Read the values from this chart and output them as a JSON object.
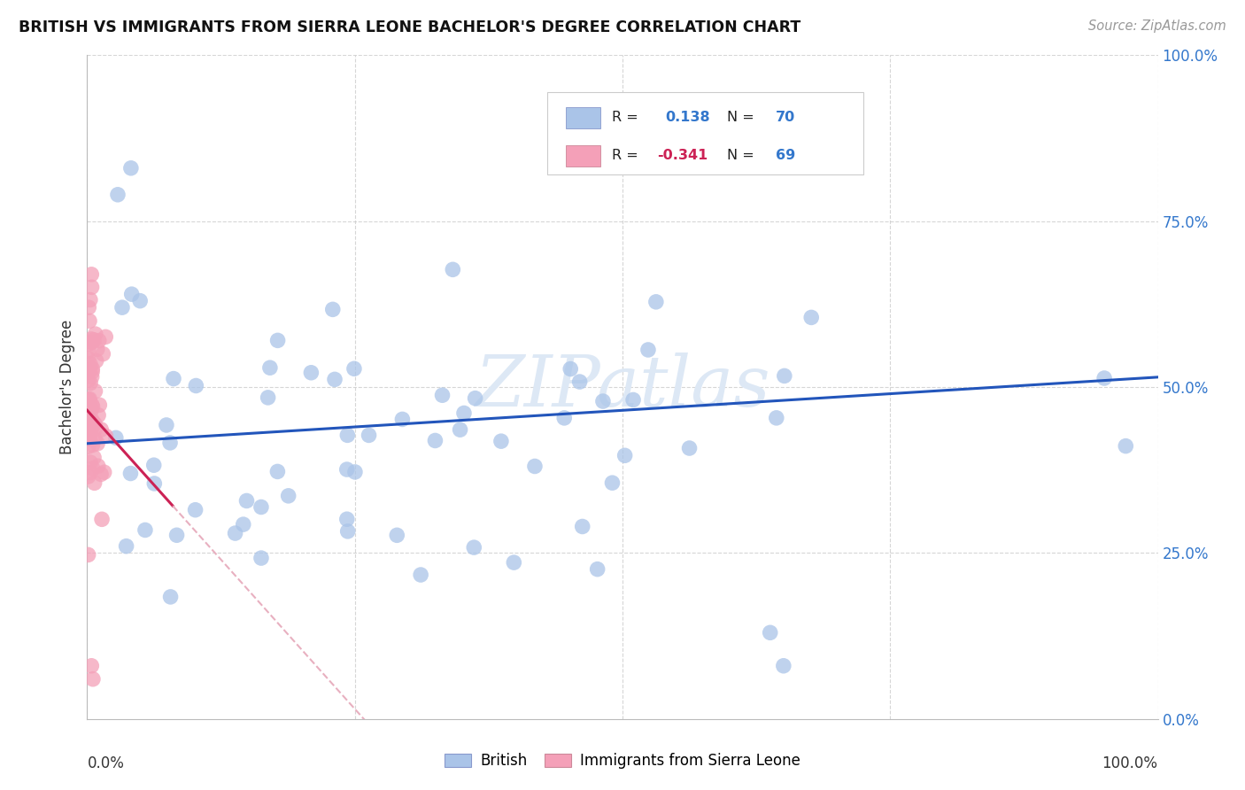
{
  "title": "BRITISH VS IMMIGRANTS FROM SIERRA LEONE BACHELOR'S DEGREE CORRELATION CHART",
  "source": "Source: ZipAtlas.com",
  "ylabel": "Bachelor's Degree",
  "watermark": "ZIPatlas",
  "british_R": 0.138,
  "british_N": 70,
  "sierra_leone_R": -0.341,
  "sierra_leone_N": 69,
  "british_color": "#aac4e8",
  "sierra_leone_color": "#f4a0b8",
  "british_line_color": "#2255bb",
  "sierra_leone_line_color": "#cc2255",
  "sierra_leone_line_dash_color": "#e8b0c0",
  "grid_color": "#cccccc",
  "right_axis_color": "#3377cc",
  "title_color": "#111111",
  "xlim": [
    0.0,
    1.0
  ],
  "ylim": [
    0.0,
    1.0
  ]
}
